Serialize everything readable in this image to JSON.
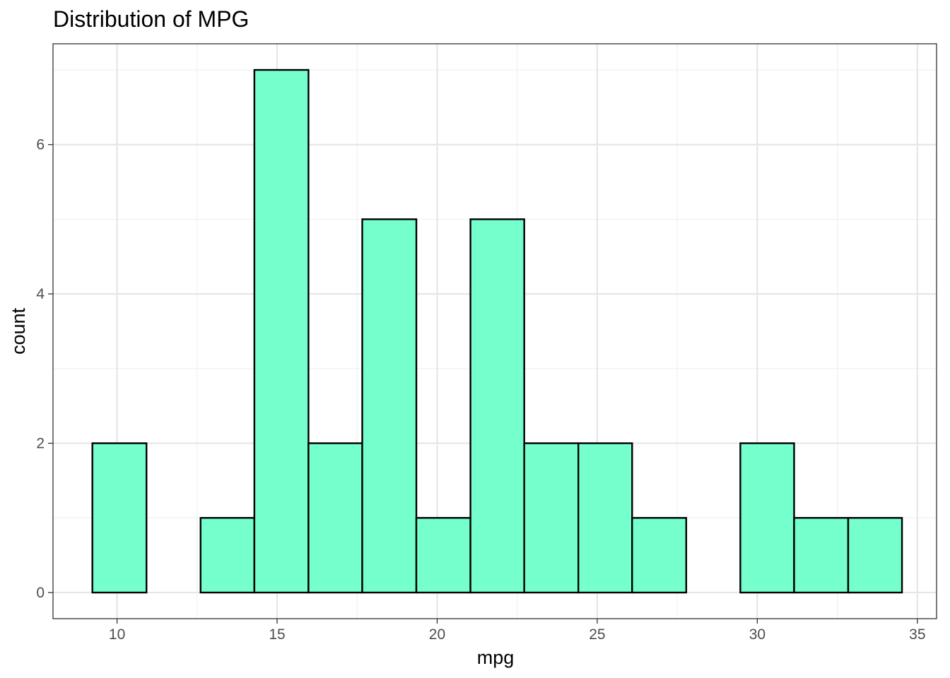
{
  "chart_data": {
    "type": "bar",
    "title": "Distribution of MPG",
    "xlabel": "mpg",
    "ylabel": "count",
    "bins": [
      {
        "x0": 9.23,
        "x1": 10.92,
        "count": 2
      },
      {
        "x0": 10.92,
        "x1": 12.61,
        "count": 0
      },
      {
        "x0": 12.61,
        "x1": 14.29,
        "count": 1
      },
      {
        "x0": 14.29,
        "x1": 15.98,
        "count": 7
      },
      {
        "x0": 15.98,
        "x1": 17.66,
        "count": 2
      },
      {
        "x0": 17.66,
        "x1": 19.35,
        "count": 5
      },
      {
        "x0": 19.35,
        "x1": 21.04,
        "count": 1
      },
      {
        "x0": 21.04,
        "x1": 22.72,
        "count": 5
      },
      {
        "x0": 22.72,
        "x1": 24.41,
        "count": 2
      },
      {
        "x0": 24.41,
        "x1": 26.09,
        "count": 2
      },
      {
        "x0": 26.09,
        "x1": 27.78,
        "count": 1
      },
      {
        "x0": 27.78,
        "x1": 29.47,
        "count": 0
      },
      {
        "x0": 29.47,
        "x1": 31.15,
        "count": 2
      },
      {
        "x0": 31.15,
        "x1": 32.84,
        "count": 1
      },
      {
        "x0": 32.84,
        "x1": 34.52,
        "count": 1
      }
    ],
    "xlim": [
      8.0,
      35.6
    ],
    "ylim": [
      -0.35,
      7.35
    ],
    "x_ticks": [
      10,
      15,
      20,
      25,
      30,
      35
    ],
    "y_ticks": [
      0,
      2,
      4,
      6
    ],
    "grid": true,
    "colors": {
      "bar_fill": "#74ffcc",
      "bar_outline": "#000000",
      "grid_major": "#e6e6e6",
      "grid_minor": "#f0f0f0",
      "panel_border": "#333333",
      "tick_text": "#4d4d4d"
    }
  }
}
